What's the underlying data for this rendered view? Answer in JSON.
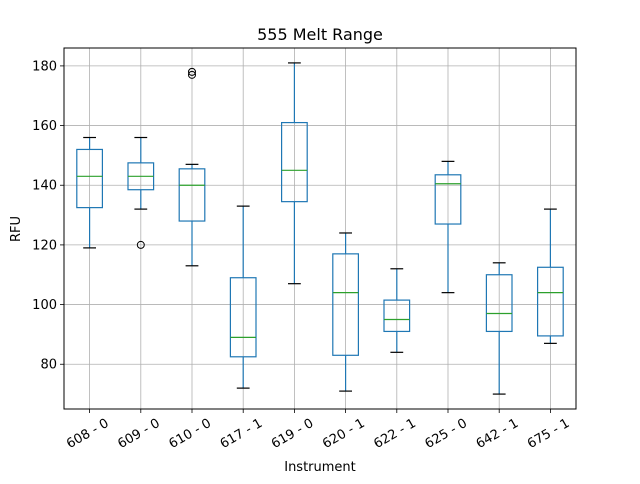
{
  "chart_data": {
    "type": "box",
    "title": "555 Melt Range",
    "xlabel": "Instrument",
    "ylabel": "RFU",
    "ylim": [
      65,
      186
    ],
    "yticks": [
      80,
      100,
      120,
      140,
      160,
      180
    ],
    "grid": true,
    "categories": [
      "608 - 0",
      "609 - 0",
      "610 - 0",
      "617 - 1",
      "619 - 0",
      "620 - 1",
      "622 - 1",
      "625 - 0",
      "642 - 1",
      "675 - 1"
    ],
    "boxes": [
      {
        "whisker_low": 119,
        "q1": 132.5,
        "median": 143,
        "q3": 152,
        "whisker_high": 156,
        "outliers": []
      },
      {
        "whisker_low": 132,
        "q1": 138.5,
        "median": 143,
        "q3": 147.5,
        "whisker_high": 156,
        "outliers": [
          120
        ]
      },
      {
        "whisker_low": 113,
        "q1": 128,
        "median": 140,
        "q3": 145.5,
        "whisker_high": 147,
        "outliers": [
          177,
          178
        ]
      },
      {
        "whisker_low": 72,
        "q1": 82.5,
        "median": 89,
        "q3": 109,
        "whisker_high": 133,
        "outliers": []
      },
      {
        "whisker_low": 107,
        "q1": 134.5,
        "median": 145,
        "q3": 161,
        "whisker_high": 181,
        "outliers": []
      },
      {
        "whisker_low": 71,
        "q1": 83,
        "median": 104,
        "q3": 117,
        "whisker_high": 124,
        "outliers": []
      },
      {
        "whisker_low": 84,
        "q1": 91,
        "median": 95,
        "q3": 101.5,
        "whisker_high": 112,
        "outliers": []
      },
      {
        "whisker_low": 104,
        "q1": 127,
        "median": 140.5,
        "q3": 143.5,
        "whisker_high": 148,
        "outliers": []
      },
      {
        "whisker_low": 70,
        "q1": 91,
        "median": 97,
        "q3": 110,
        "whisker_high": 114,
        "outliers": []
      },
      {
        "whisker_low": 87,
        "q1": 89.5,
        "median": 104,
        "q3": 112.5,
        "whisker_high": 132,
        "outliers": []
      }
    ],
    "colors": {
      "box": "#1f77b4",
      "median": "#2ca02c",
      "whisker": "#1f77b4",
      "cap": "#000000",
      "grid": "#b0b0b0",
      "axes": "#000000"
    }
  }
}
